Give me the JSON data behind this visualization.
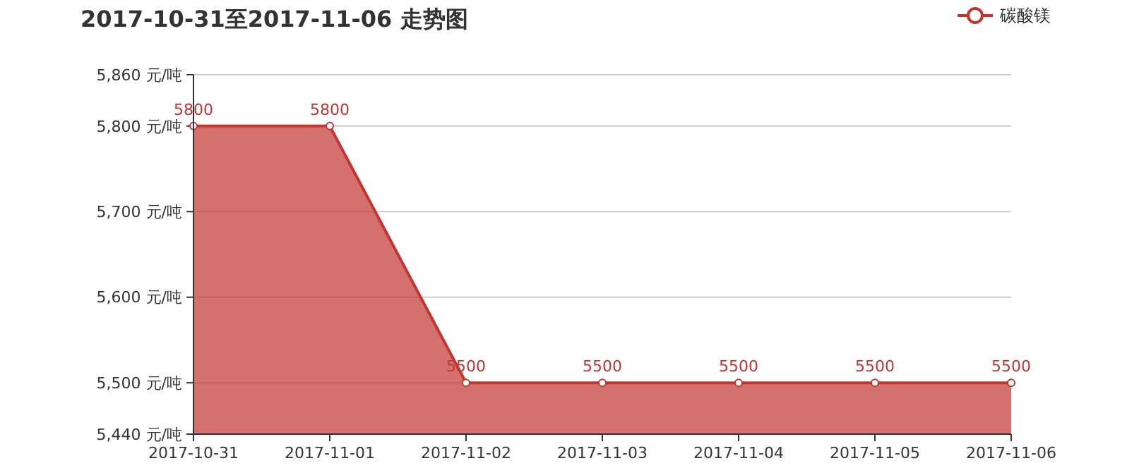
{
  "chart_data": {
    "type": "area",
    "title": "2017-10-31至2017-11-06 走势图",
    "categories": [
      "2017-10-31",
      "2017-11-01",
      "2017-11-02",
      "2017-11-03",
      "2017-11-04",
      "2017-11-05",
      "2017-11-06"
    ],
    "series": [
      {
        "name": "碳酸镁",
        "color": "#c23531",
        "values": [
          5800,
          5800,
          5500,
          5500,
          5500,
          5500,
          5500
        ]
      }
    ],
    "ylim": [
      5440,
      5860
    ],
    "yticks": [
      {
        "value": 5440,
        "label": "5,440 元/吨"
      },
      {
        "value": 5500,
        "label": "5,500 元/吨"
      },
      {
        "value": 5600,
        "label": "5,600 元/吨"
      },
      {
        "value": 5700,
        "label": "5,700 元/吨"
      },
      {
        "value": 5800,
        "label": "5,800 元/吨"
      },
      {
        "value": 5860,
        "label": "5,860 元/吨"
      }
    ],
    "grid": "y",
    "legend": "top right",
    "marker": "circle",
    "data_labels": true
  }
}
